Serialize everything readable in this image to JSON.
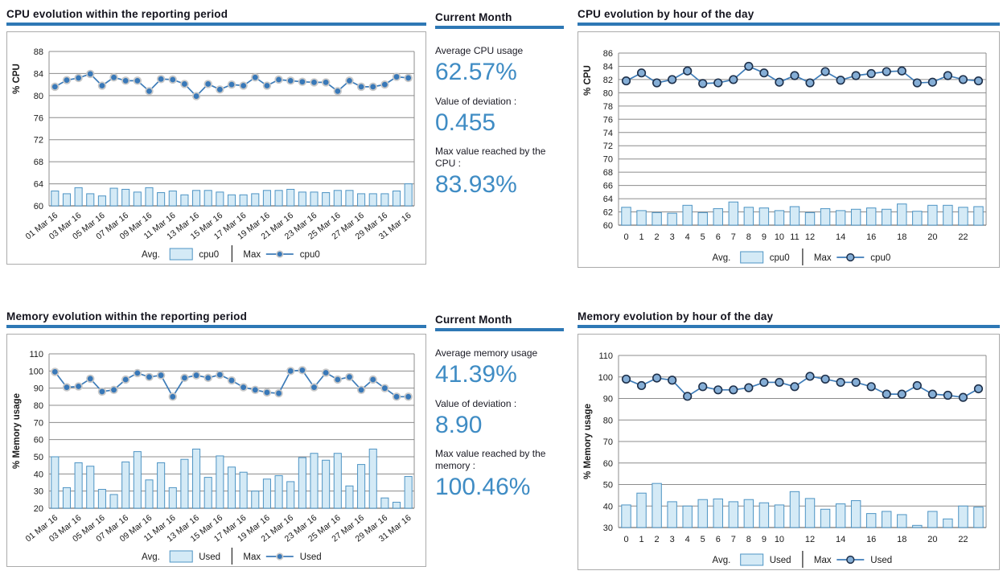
{
  "colors": {
    "bar_fill": "#d4eaf6",
    "bar_stroke": "#4e94c4",
    "line": "#3e7cb8",
    "marker_fill": "#3878b8",
    "marker_halo": "#c8c8c8",
    "marker_ring_fill": "#85aed6",
    "marker_ring_stroke": "#1d2f49",
    "grid": "#8c8c8c",
    "title_underline": "#2e78b5",
    "stat_value_blue": "#3f8cc4"
  },
  "chart_data": [
    {
      "type": "bar+line",
      "title": "CPU evolution within the reporting period",
      "ylabel": "% CPU",
      "ymin": 60,
      "ymax": 88,
      "ystep": 4,
      "marker": "halo",
      "legend": {
        "avg_label": "Avg.",
        "avg_series": "cpu0",
        "max_label": "Max",
        "max_series": "cpu0"
      },
      "x_labels": [
        "01 Mar 16",
        "",
        "03 Mar 16",
        "",
        "05 Mar 16",
        "",
        "07 Mar 16",
        "",
        "09 Mar 16",
        "",
        "11 Mar 16",
        "",
        "13 Mar 16",
        "",
        "15 Mar 16",
        "",
        "17 Mar 16",
        "",
        "19 Mar 16",
        "",
        "21 Mar 16",
        "",
        "23 Mar 16",
        "",
        "25 Mar 16",
        "",
        "27 Mar 16",
        "",
        "29 Mar 16",
        "",
        "31 Mar 16"
      ],
      "bars": [
        62.7,
        62.2,
        63.3,
        62.2,
        61.8,
        63.2,
        63.0,
        62.5,
        63.3,
        62.4,
        62.7,
        62.0,
        62.8,
        62.8,
        62.5,
        62.0,
        62.0,
        62.2,
        62.8,
        62.8,
        63.0,
        62.5,
        62.5,
        62.4,
        62.8,
        62.8,
        62.2,
        62.2,
        62.2,
        62.7,
        64.0
      ],
      "line": [
        81.6,
        82.8,
        83.2,
        83.93,
        81.8,
        83.3,
        82.7,
        82.7,
        80.8,
        83.0,
        82.9,
        82.1,
        79.9,
        82.1,
        81.1,
        82.0,
        81.8,
        83.3,
        81.8,
        82.9,
        82.7,
        82.5,
        82.4,
        82.4,
        80.8,
        82.7,
        81.6,
        81.6,
        82.0,
        83.4,
        83.2
      ]
    },
    {
      "type": "bar+line",
      "title": "CPU evolution by hour of the day",
      "ylabel": "% CPU",
      "ymin": 60,
      "ymax": 86,
      "ystep": 2,
      "marker": "ring",
      "legend": {
        "avg_label": "Avg.",
        "avg_series": "cpu0",
        "max_label": "Max",
        "max_series": "cpu0"
      },
      "x_labels": [
        "0",
        "1",
        "2",
        "3",
        "4",
        "5",
        "6",
        "7",
        "8",
        "9",
        "10",
        "11",
        "12",
        "",
        "14",
        "",
        "16",
        "",
        "18",
        "",
        "20",
        "",
        "22",
        ""
      ],
      "bars": [
        62.7,
        62.2,
        61.9,
        61.8,
        63.0,
        61.9,
        62.5,
        63.5,
        62.7,
        62.6,
        62.2,
        62.8,
        61.9,
        62.5,
        62.2,
        62.4,
        62.6,
        62.4,
        63.2,
        62.1,
        63.0,
        63.0,
        62.7,
        62.8
      ],
      "line": [
        81.8,
        83.0,
        81.5,
        82.0,
        83.3,
        81.4,
        81.5,
        82.0,
        84.0,
        83.0,
        81.6,
        82.6,
        81.5,
        83.2,
        81.9,
        82.6,
        82.9,
        83.2,
        83.3,
        81.5,
        81.6,
        82.6,
        82.0,
        81.8
      ]
    },
    {
      "type": "bar+line",
      "title": "Memory evolution within the reporting period",
      "ylabel": "% Memory usage",
      "ymin": 20,
      "ymax": 110,
      "ystep": 10,
      "marker": "halo",
      "legend": {
        "avg_label": "Avg.",
        "avg_series": "Used",
        "max_label": "Max",
        "max_series": "Used"
      },
      "x_labels": [
        "01 Mar 16",
        "",
        "03 Mar 16",
        "",
        "05 Mar 16",
        "",
        "07 Mar 16",
        "",
        "09 Mar 16",
        "",
        "11 Mar 16",
        "",
        "13 Mar 16",
        "",
        "15 Mar 16",
        "",
        "17 Mar 16",
        "",
        "19 Mar 16",
        "",
        "21 Mar 16",
        "",
        "23 Mar 16",
        "",
        "25 Mar 16",
        "",
        "27 Mar 16",
        "",
        "29 Mar 16",
        "",
        "31 Mar 16"
      ],
      "bars": [
        50,
        32,
        46.5,
        44.5,
        31,
        28,
        47,
        53,
        36.5,
        46.5,
        32,
        48.5,
        54.5,
        38,
        50.5,
        44,
        41,
        30,
        37,
        39,
        35.5,
        49.5,
        52,
        48,
        52,
        33,
        45.5,
        54.5,
        26,
        23.5,
        38.5
      ],
      "line": [
        99.5,
        90.5,
        91,
        95.5,
        88,
        89,
        95,
        98.8,
        96.5,
        97.5,
        85,
        96,
        97.5,
        96,
        97.8,
        94.5,
        90.5,
        89,
        87.5,
        87,
        100,
        100.46,
        90.5,
        99,
        95,
        96.5,
        89,
        95,
        90,
        85,
        85
      ]
    },
    {
      "type": "bar+line",
      "title": "Memory evolution by hour of the day",
      "ylabel": "% Memory usage",
      "ymin": 30,
      "ymax": 110,
      "ystep": 10,
      "marker": "ring",
      "legend": {
        "avg_label": "Avg.",
        "avg_series": "Used",
        "max_label": "Max",
        "max_series": "Used"
      },
      "x_labels": [
        "0",
        "1",
        "2",
        "3",
        "4",
        "5",
        "6",
        "7",
        "8",
        "9",
        "10",
        "",
        "12",
        "",
        "14",
        "",
        "16",
        "",
        "18",
        "",
        "20",
        "",
        "22",
        ""
      ],
      "bars": [
        40.5,
        46,
        50.5,
        42,
        40,
        43,
        43.3,
        42,
        43,
        41.5,
        40.5,
        46.7,
        43.5,
        38.5,
        41,
        42.5,
        36.5,
        37.5,
        36,
        31,
        37.5,
        34,
        40,
        39.5
      ],
      "line": [
        99,
        96,
        99.5,
        98.5,
        91,
        95.5,
        94,
        94,
        95,
        97.5,
        97.5,
        95.5,
        100.3,
        99,
        97.5,
        97.5,
        95.5,
        92,
        92,
        96,
        92,
        91.5,
        90.5,
        94.5
      ]
    }
  ],
  "panels": [
    {
      "heading": "Current Month",
      "items": [
        {
          "label": "Average CPU usage",
          "value": "62.57%"
        },
        {
          "label": "Value of deviation :",
          "value": "0.455"
        },
        {
          "label": "Max value reached by the CPU :",
          "value": "83.93%"
        }
      ]
    },
    {
      "heading": "Current Month",
      "items": [
        {
          "label": "Average memory usage",
          "value": "41.39%"
        },
        {
          "label": "Value of deviation :",
          "value": "8.90"
        },
        {
          "label": "Max value reached by the memory :",
          "value": "100.46%"
        }
      ]
    }
  ]
}
